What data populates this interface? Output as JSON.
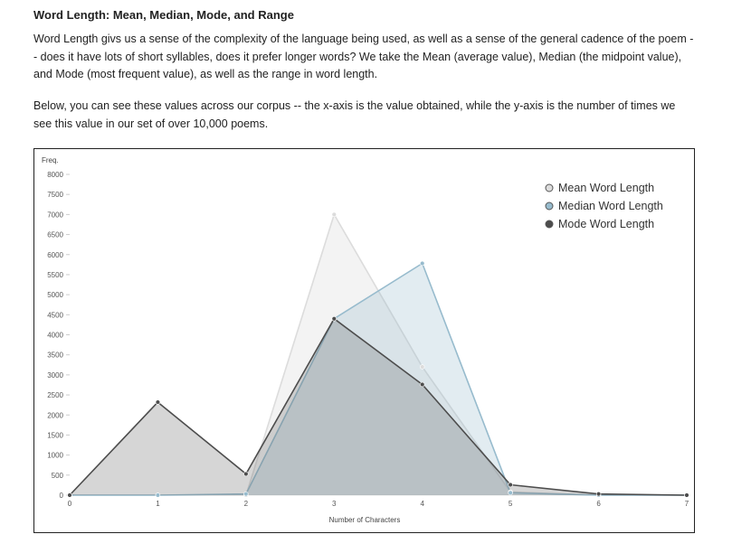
{
  "article": {
    "title": "Word Length: Mean, Median, Mode, and Range",
    "paragraph1": "Word Length givs us a sense of the complexity of the language being used, as well as a sense of the general cadence of the poem -- does it have lots of short syllables, does it prefer longer words? We take the Mean (average value), Median (the midpoint value), and Mode (most frequent value), as well as the range in word length.",
    "paragraph2": "Below, you can see these values across our corpus -- the x-axis is the value obtained, while the y-axis is the number of times we see this value in our set of over 10,000 poems."
  },
  "colors": {
    "mean": "#dcdcdc",
    "median": "#97bbcd",
    "mode": "#4d4d4d"
  },
  "chart_data": {
    "type": "area",
    "title": "",
    "xlabel": "Number of Characters",
    "ylabel": "Freq.",
    "x": [
      0,
      1,
      2,
      3,
      4,
      5,
      6,
      7
    ],
    "xlim": [
      0,
      7
    ],
    "ylim": [
      0,
      8000
    ],
    "yticks": [
      0,
      500,
      1000,
      1500,
      2000,
      2500,
      3000,
      3500,
      4000,
      4500,
      5000,
      5500,
      6000,
      6500,
      7000,
      7500,
      8000
    ],
    "grid": false,
    "legend_position": "top-right",
    "series": [
      {
        "name": "Mean Word Length",
        "key": "mean",
        "values": [
          0,
          0,
          0,
          7000,
          3200,
          80,
          0,
          0
        ]
      },
      {
        "name": "Median Word Length",
        "key": "median",
        "values": [
          0,
          0,
          30,
          4400,
          5780,
          60,
          0,
          0
        ]
      },
      {
        "name": "Mode Word Length",
        "key": "mode",
        "values": [
          0,
          2320,
          530,
          4400,
          2760,
          260,
          30,
          0
        ]
      }
    ]
  }
}
